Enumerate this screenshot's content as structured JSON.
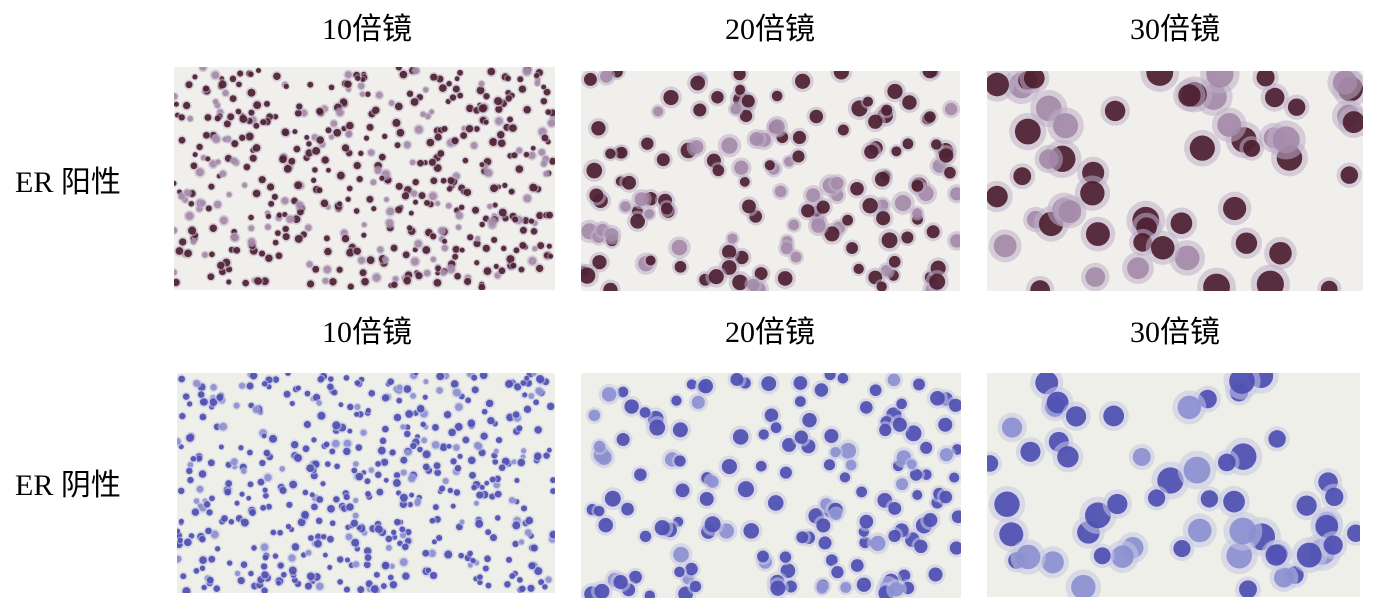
{
  "rows": [
    {
      "label": "ER 阳性",
      "stain": "positive",
      "panels": [
        {
          "magnification": "10倍镜"
        },
        {
          "magnification": "20倍镜"
        },
        {
          "magnification": "30倍镜"
        }
      ]
    },
    {
      "label": "ER 阴性",
      "stain": "negative",
      "panels": [
        {
          "magnification": "10倍镜"
        },
        {
          "magnification": "20倍镜"
        },
        {
          "magnification": "30倍镜"
        }
      ]
    }
  ],
  "colors": {
    "background_positive": "#f1efec",
    "background_negative": "#efefe9",
    "nucleus_positive": "#4a1c2c",
    "cytoplasm_positive": "#bdaec8",
    "nucleus_negative": "#4a4bb0",
    "cytoplasm_negative": "#c6c6e4"
  }
}
